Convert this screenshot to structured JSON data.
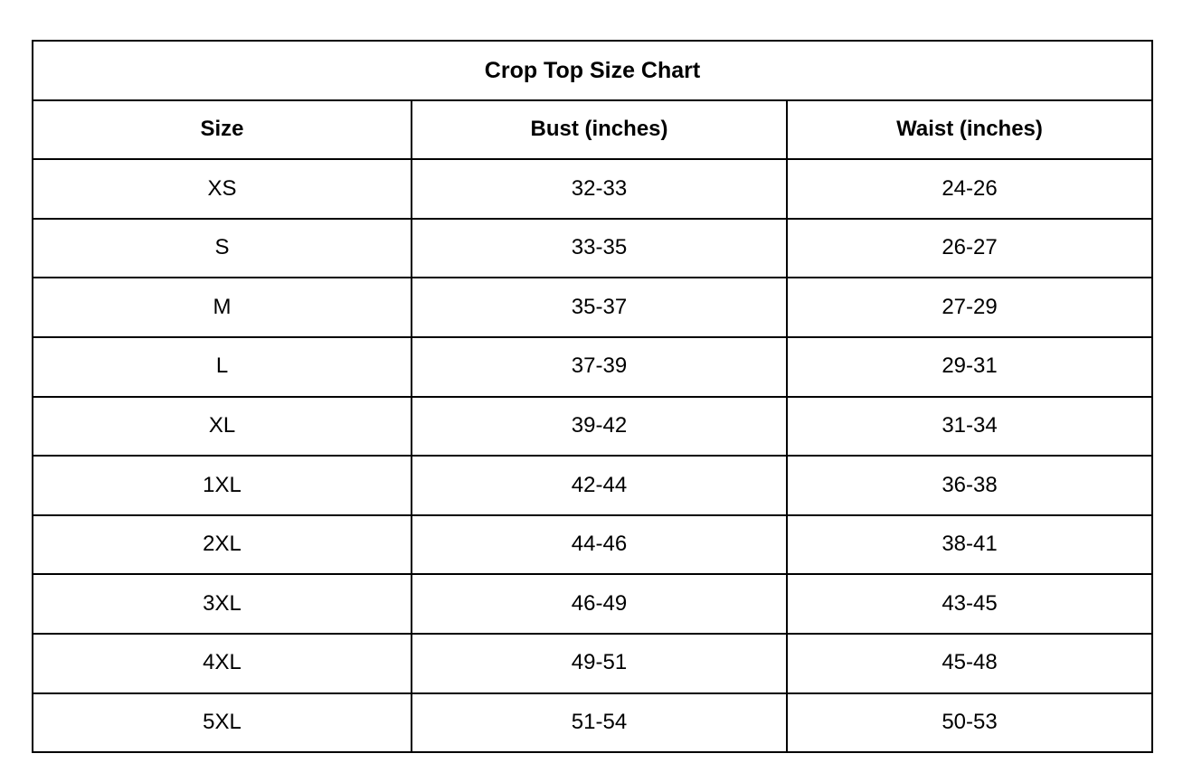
{
  "table": {
    "title": "Crop Top Size Chart",
    "columns": [
      "Size",
      "Bust (inches)",
      "Waist (inches)"
    ],
    "rows": [
      {
        "size": "XS",
        "bust": "32-33",
        "waist": "24-26"
      },
      {
        "size": "S",
        "bust": "33-35",
        "waist": "26-27"
      },
      {
        "size": "M",
        "bust": "35-37",
        "waist": "27-29"
      },
      {
        "size": "L",
        "bust": "37-39",
        "waist": "29-31"
      },
      {
        "size": "XL",
        "bust": "39-42",
        "waist": "31-34"
      },
      {
        "size": "1XL",
        "bust": "42-44",
        "waist": "36-38"
      },
      {
        "size": "2XL",
        "bust": "44-46",
        "waist": "38-41"
      },
      {
        "size": "3XL",
        "bust": "46-49",
        "waist": "43-45"
      },
      {
        "size": "4XL",
        "bust": "49-51",
        "waist": "45-48"
      },
      {
        "size": "5XL",
        "bust": "51-54",
        "waist": "50-53"
      }
    ]
  },
  "chart_data": {
    "type": "table",
    "title": "Crop Top Size Chart",
    "columns": [
      "Size",
      "Bust (inches)",
      "Waist (inches)"
    ],
    "rows": [
      [
        "XS",
        "32-33",
        "24-26"
      ],
      [
        "S",
        "33-35",
        "26-27"
      ],
      [
        "M",
        "35-37",
        "27-29"
      ],
      [
        "L",
        "37-39",
        "29-31"
      ],
      [
        "XL",
        "39-42",
        "31-34"
      ],
      [
        "1XL",
        "42-44",
        "36-38"
      ],
      [
        "2XL",
        "44-46",
        "38-41"
      ],
      [
        "3XL",
        "46-49",
        "43-45"
      ],
      [
        "4XL",
        "49-51",
        "45-48"
      ],
      [
        "5XL",
        "51-54",
        "50-53"
      ]
    ],
    "colors": {
      "border": "#000000",
      "background": "#ffffff",
      "text": "#000000"
    }
  }
}
